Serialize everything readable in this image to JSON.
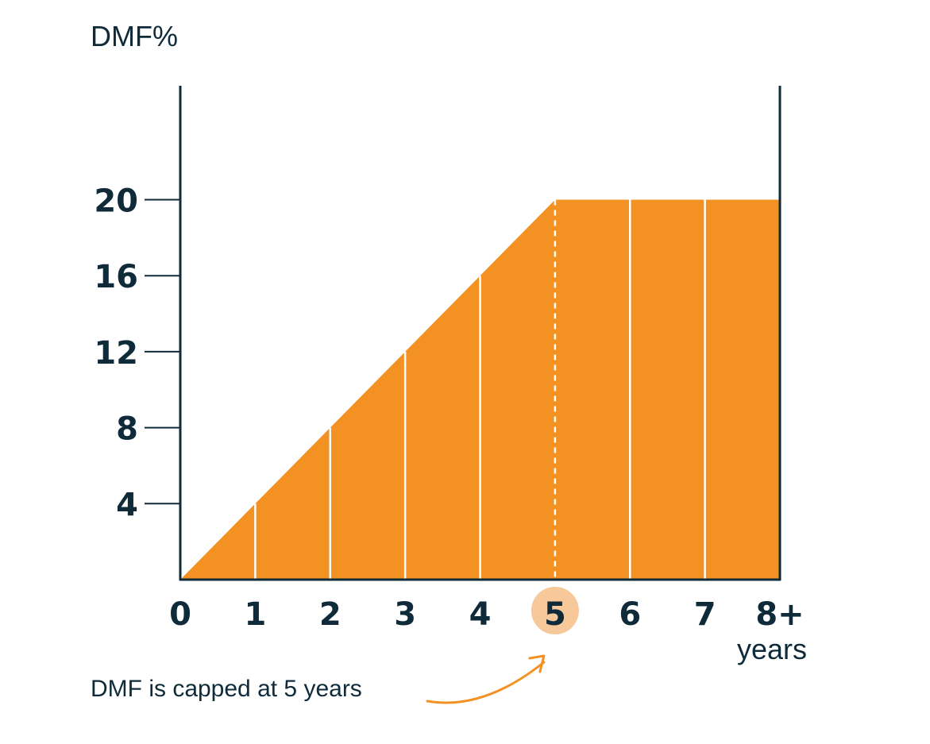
{
  "colors": {
    "ink": "#0f2b3a",
    "fill": "#f39222",
    "highlight": "#f7c89a",
    "divider": "#ffffff"
  },
  "chart_data": {
    "type": "area",
    "title": "",
    "xlabel": "years",
    "ylabel": "DMF%",
    "x": [
      0,
      1,
      2,
      3,
      4,
      5,
      6,
      7,
      8
    ],
    "x_tick_labels": [
      "0",
      "1",
      "2",
      "3",
      "4",
      "5",
      "6",
      "7",
      "8+"
    ],
    "highlighted_x": 5,
    "y_ticks": [
      4,
      8,
      12,
      16,
      20
    ],
    "y_tick_labels": [
      "4",
      "8",
      "12",
      "16",
      "20"
    ],
    "series": [
      {
        "values": [
          0,
          4,
          8,
          12,
          16,
          20,
          20,
          20,
          20
        ]
      }
    ],
    "xlim": [
      0,
      8
    ],
    "ylim": [
      0,
      26
    ],
    "grid": false,
    "legend": "none",
    "cap_marker_x": 5,
    "annotation": {
      "text": "DMF is capped at 5 years",
      "points_to_x": 5
    }
  }
}
